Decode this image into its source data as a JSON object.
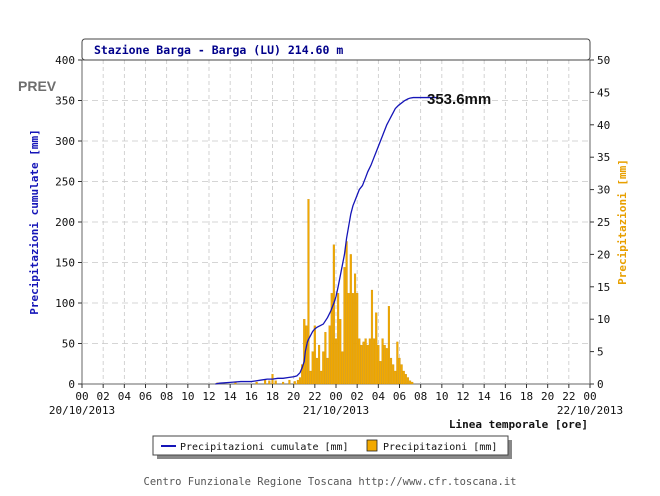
{
  "header": {
    "prev_label": "PREV",
    "title": "Stazione Barga - Barga (LU) 214.60 m"
  },
  "annotation": {
    "total_label": "353.6mm"
  },
  "axes": {
    "y_left_label": "Precipitazioni cumulate [mm]",
    "y_right_label": "Precipitazioni [mm]",
    "x_label": "Linea temporale [ore]",
    "y_left_ticks": [
      "0",
      "50",
      "100",
      "150",
      "200",
      "250",
      "300",
      "350",
      "400"
    ],
    "y_right_ticks": [
      "0",
      "5",
      "10",
      "15",
      "20",
      "25",
      "30",
      "35",
      "40",
      "45",
      "50"
    ],
    "x_hour_ticks": [
      "00",
      "02",
      "04",
      "06",
      "08",
      "10",
      "12",
      "14",
      "16",
      "18",
      "20",
      "22",
      "00",
      "02",
      "04",
      "06",
      "08",
      "10",
      "12",
      "14",
      "16",
      "18",
      "20",
      "22",
      "00"
    ],
    "x_date_ticks": [
      {
        "label": "20/10/2013",
        "hour": 0
      },
      {
        "label": "21/10/2013",
        "hour": 24
      },
      {
        "label": "22/10/2013",
        "hour": 48
      }
    ]
  },
  "legend": {
    "cumulative_label": "Precipitazioni cumulate [mm]",
    "hourly_label": "Precipitazioni [mm]"
  },
  "footer": {
    "credit": "Centro Funzionale Regione Toscana http://www.cfr.toscana.it"
  },
  "colors": {
    "cumulative": "#1515b8",
    "hourly": "#f2a900",
    "hourly_stroke": "#c98a00",
    "title": "#00008b",
    "grid": "#c8c8c8"
  },
  "chart_data": {
    "type": "bar+line",
    "title": "Stazione Barga - Barga (LU) 214.60 m",
    "xlabel": "Linea temporale [ore]",
    "ylabel_left": "Precipitazioni cumulate [mm]",
    "ylabel_right": "Precipitazioni [mm]",
    "xlim_hours": [
      0,
      48
    ],
    "ylim_left": [
      0,
      400
    ],
    "ylim_right": [
      0,
      50
    ],
    "grid": true,
    "legend_position": "bottom-center",
    "series": [
      {
        "name": "Precipitazioni cumulate [mm]",
        "type": "line",
        "axis": "left",
        "x_hours": [
          12.6,
          13.0,
          14.0,
          15.0,
          16.0,
          16.5,
          17.0,
          17.5,
          18.0,
          18.5,
          19.0,
          19.5,
          20.0,
          20.3,
          20.6,
          20.8,
          21.0,
          21.1,
          21.3,
          21.4,
          21.6,
          21.8,
          22.0,
          22.2,
          22.5,
          22.8,
          23.0,
          23.2,
          23.5,
          23.8,
          24.0,
          24.2,
          24.5,
          24.8,
          25.0,
          25.2,
          25.4,
          25.6,
          25.9,
          26.2,
          26.5,
          26.8,
          27.0,
          27.3,
          27.6,
          27.9,
          28.2,
          28.5,
          28.8,
          29.0,
          29.2,
          29.4,
          29.6,
          29.9,
          30.2,
          30.5,
          30.8,
          31.0,
          31.3,
          31.6,
          32.0,
          32.5,
          33.0,
          33.5
        ],
        "values": [
          0,
          1,
          2,
          3,
          3,
          4,
          5,
          6,
          6,
          7,
          7,
          8,
          9,
          10,
          14,
          20,
          28,
          40,
          52,
          55,
          60,
          65,
          68,
          70,
          72,
          74,
          78,
          82,
          90,
          100,
          108,
          120,
          140,
          160,
          180,
          195,
          210,
          220,
          230,
          240,
          245,
          255,
          262,
          270,
          280,
          290,
          300,
          310,
          320,
          325,
          330,
          335,
          340,
          344,
          347,
          350,
          352,
          353,
          353.6,
          353.6,
          353.6,
          353.6,
          353.6,
          353.6
        ]
      },
      {
        "name": "Precipitazioni [mm]",
        "type": "bar",
        "axis": "right",
        "bars": [
          {
            "x": 12.8,
            "v": 0.2
          },
          {
            "x": 14.5,
            "v": 0.2
          },
          {
            "x": 16.5,
            "v": 0.3
          },
          {
            "x": 17.3,
            "v": 0.6
          },
          {
            "x": 17.7,
            "v": 0.5
          },
          {
            "x": 18.0,
            "v": 1.5
          },
          {
            "x": 18.3,
            "v": 0.5
          },
          {
            "x": 19.0,
            "v": 0.3
          },
          {
            "x": 19.6,
            "v": 0.6
          },
          {
            "x": 20.1,
            "v": 0.4
          },
          {
            "x": 20.4,
            "v": 0.6
          },
          {
            "x": 20.6,
            "v": 1.0
          },
          {
            "x": 20.8,
            "v": 3.0
          },
          {
            "x": 21.0,
            "v": 10.0
          },
          {
            "x": 21.2,
            "v": 9.0
          },
          {
            "x": 21.4,
            "v": 28.5
          },
          {
            "x": 21.6,
            "v": 2.0
          },
          {
            "x": 21.8,
            "v": 5.0
          },
          {
            "x": 22.0,
            "v": 9.0
          },
          {
            "x": 22.2,
            "v": 4.0
          },
          {
            "x": 22.4,
            "v": 6.0
          },
          {
            "x": 22.6,
            "v": 2.0
          },
          {
            "x": 22.8,
            "v": 5.0
          },
          {
            "x": 23.0,
            "v": 8.0
          },
          {
            "x": 23.2,
            "v": 4.0
          },
          {
            "x": 23.4,
            "v": 9.0
          },
          {
            "x": 23.6,
            "v": 14.0
          },
          {
            "x": 23.8,
            "v": 21.5
          },
          {
            "x": 24.0,
            "v": 7.0
          },
          {
            "x": 24.2,
            "v": 14.0
          },
          {
            "x": 24.4,
            "v": 10.0
          },
          {
            "x": 24.6,
            "v": 5.0
          },
          {
            "x": 24.8,
            "v": 18.0
          },
          {
            "x": 25.0,
            "v": 22.0
          },
          {
            "x": 25.2,
            "v": 14.0
          },
          {
            "x": 25.4,
            "v": 20.0
          },
          {
            "x": 25.6,
            "v": 14.0
          },
          {
            "x": 25.8,
            "v": 17.0
          },
          {
            "x": 26.0,
            "v": 14.0
          },
          {
            "x": 26.2,
            "v": 7.0
          },
          {
            "x": 26.4,
            "v": 6.0
          },
          {
            "x": 26.6,
            "v": 6.5
          },
          {
            "x": 26.8,
            "v": 7.0
          },
          {
            "x": 27.0,
            "v": 6.0
          },
          {
            "x": 27.2,
            "v": 7.0
          },
          {
            "x": 27.4,
            "v": 14.5
          },
          {
            "x": 27.6,
            "v": 7.0
          },
          {
            "x": 27.8,
            "v": 11.0
          },
          {
            "x": 28.0,
            "v": 6.0
          },
          {
            "x": 28.2,
            "v": 3.5
          },
          {
            "x": 28.4,
            "v": 7.0
          },
          {
            "x": 28.6,
            "v": 6.0
          },
          {
            "x": 28.8,
            "v": 5.5
          },
          {
            "x": 29.0,
            "v": 12.0
          },
          {
            "x": 29.2,
            "v": 4.0
          },
          {
            "x": 29.4,
            "v": 3.0
          },
          {
            "x": 29.6,
            "v": 2.0
          },
          {
            "x": 29.8,
            "v": 6.5
          },
          {
            "x": 30.0,
            "v": 4.0
          },
          {
            "x": 30.2,
            "v": 3.0
          },
          {
            "x": 30.4,
            "v": 2.0
          },
          {
            "x": 30.6,
            "v": 1.5
          },
          {
            "x": 30.8,
            "v": 1.0
          },
          {
            "x": 31.0,
            "v": 0.5
          },
          {
            "x": 31.2,
            "v": 0.3
          }
        ]
      }
    ]
  }
}
